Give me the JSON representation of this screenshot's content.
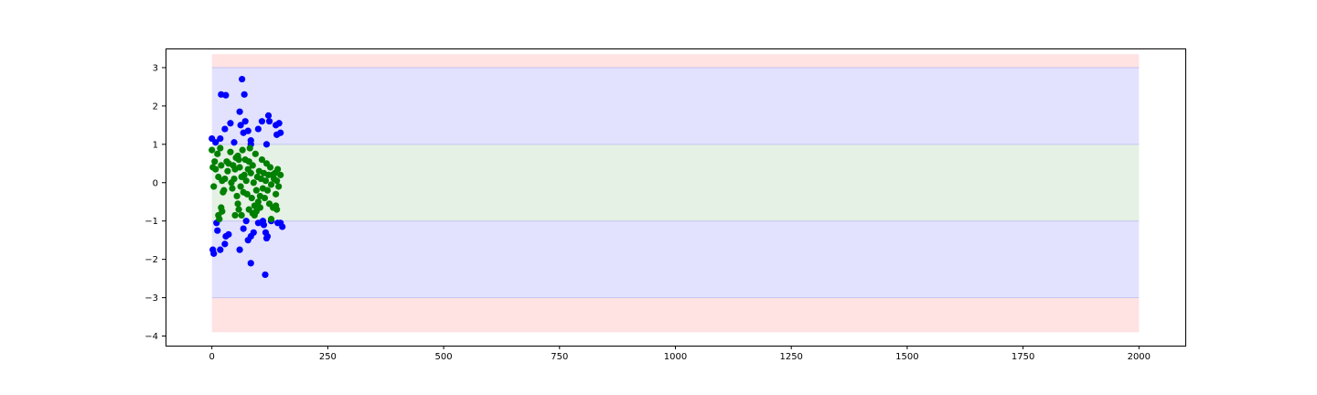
{
  "chart_data": {
    "type": "scatter",
    "title": "",
    "xlabel": "",
    "ylabel": "",
    "xlim": [
      -100,
      2100
    ],
    "ylim": [
      -4.25,
      3.5
    ],
    "x_ticks": [
      0,
      250,
      500,
      750,
      1000,
      1250,
      1500,
      1750,
      2000
    ],
    "y_ticks": [
      3,
      2,
      1,
      0,
      -1,
      -2,
      -3,
      -4
    ],
    "grid": false,
    "bands": [
      {
        "name": "outer-top",
        "x": [
          0,
          2000
        ],
        "y": [
          3,
          3.35
        ],
        "color": "#ffe2e2"
      },
      {
        "name": "middle-top",
        "x": [
          0,
          2000
        ],
        "y": [
          1,
          3
        ],
        "color": "#e2e2ff"
      },
      {
        "name": "inner",
        "x": [
          0,
          2000
        ],
        "y": [
          -1,
          1
        ],
        "color": "#e4f1e4"
      },
      {
        "name": "middle-bottom",
        "x": [
          0,
          2000
        ],
        "y": [
          -3,
          -1
        ],
        "color": "#e2e2ff"
      },
      {
        "name": "outer-bottom",
        "x": [
          0,
          2000
        ],
        "y": [
          -3.9,
          -3
        ],
        "color": "#ffe2e2"
      }
    ],
    "series": [
      {
        "color": "#0000ff",
        "points": [
          [
            0,
            1.15
          ],
          [
            8,
            1.05
          ],
          [
            18,
            1.15
          ],
          [
            28,
            1.4
          ],
          [
            40,
            1.55
          ],
          [
            48,
            1.05
          ],
          [
            60,
            1.85
          ],
          [
            62,
            1.5
          ],
          [
            68,
            1.3
          ],
          [
            72,
            1.6
          ],
          [
            78,
            1.35
          ],
          [
            84,
            1.1
          ],
          [
            84,
            1.0
          ],
          [
            100,
            1.4
          ],
          [
            108,
            1.6
          ],
          [
            118,
            1.0
          ],
          [
            122,
            1.75
          ],
          [
            124,
            1.6
          ],
          [
            138,
            1.5
          ],
          [
            140,
            1.25
          ],
          [
            145,
            1.55
          ],
          [
            148,
            1.3
          ],
          [
            65,
            2.7
          ],
          [
            70,
            2.3
          ],
          [
            20,
            2.3
          ],
          [
            30,
            2.28
          ],
          [
            2,
            -1.75
          ],
          [
            4,
            -1.85
          ],
          [
            10,
            -1.05
          ],
          [
            12,
            -1.25
          ],
          [
            18,
            -1.75
          ],
          [
            28,
            -1.6
          ],
          [
            30,
            -1.4
          ],
          [
            36,
            -1.35
          ],
          [
            60,
            -1.75
          ],
          [
            68,
            -1.2
          ],
          [
            74,
            -1.0
          ],
          [
            78,
            -1.5
          ],
          [
            84,
            -1.4
          ],
          [
            90,
            -1.3
          ],
          [
            100,
            -1.05
          ],
          [
            110,
            -1.0
          ],
          [
            112,
            -1.1
          ],
          [
            116,
            -1.3
          ],
          [
            118,
            -1.45
          ],
          [
            120,
            -1.4
          ],
          [
            128,
            -1.0
          ],
          [
            142,
            -1.05
          ],
          [
            148,
            -1.05
          ],
          [
            152,
            -1.15
          ],
          [
            84,
            -2.1
          ],
          [
            115,
            -2.4
          ]
        ]
      },
      {
        "color": "#008000",
        "points": [
          [
            0,
            0.85
          ],
          [
            2,
            0.4
          ],
          [
            4,
            -0.1
          ],
          [
            6,
            0.55
          ],
          [
            8,
            0.35
          ],
          [
            12,
            0.75
          ],
          [
            14,
            0.15
          ],
          [
            18,
            0.9
          ],
          [
            20,
            0.45
          ],
          [
            22,
            0.05
          ],
          [
            24,
            -0.25
          ],
          [
            26,
            -0.2
          ],
          [
            28,
            0.1
          ],
          [
            32,
            0.55
          ],
          [
            34,
            0.3
          ],
          [
            36,
            0.5
          ],
          [
            40,
            0.8
          ],
          [
            42,
            0.0
          ],
          [
            44,
            -0.15
          ],
          [
            46,
            0.45
          ],
          [
            48,
            0.1
          ],
          [
            50,
            0.35
          ],
          [
            52,
            0.65
          ],
          [
            54,
            -0.35
          ],
          [
            56,
            0.7
          ],
          [
            58,
            0.6
          ],
          [
            60,
            0.4
          ],
          [
            62,
            -0.1
          ],
          [
            64,
            0.15
          ],
          [
            66,
            0.85
          ],
          [
            68,
            -0.25
          ],
          [
            70,
            0.2
          ],
          [
            72,
            0.6
          ],
          [
            74,
            0.05
          ],
          [
            76,
            -0.3
          ],
          [
            78,
            0.35
          ],
          [
            80,
            0.55
          ],
          [
            82,
            0.9
          ],
          [
            84,
            0.25
          ],
          [
            86,
            -0.4
          ],
          [
            88,
            0.45
          ],
          [
            90,
            0.0
          ],
          [
            92,
            -0.6
          ],
          [
            94,
            0.75
          ],
          [
            96,
            -0.2
          ],
          [
            98,
            0.15
          ],
          [
            100,
            -0.5
          ],
          [
            102,
            0.3
          ],
          [
            104,
            -0.35
          ],
          [
            106,
            0.1
          ],
          [
            108,
            0.6
          ],
          [
            110,
            -0.15
          ],
          [
            112,
            0.25
          ],
          [
            114,
            -0.4
          ],
          [
            116,
            0.05
          ],
          [
            118,
            0.5
          ],
          [
            120,
            -0.2
          ],
          [
            122,
            0.2
          ],
          [
            124,
            -0.55
          ],
          [
            126,
            0.4
          ],
          [
            128,
            -0.05
          ],
          [
            130,
            0.2
          ],
          [
            132,
            -0.65
          ],
          [
            134,
            0.1
          ],
          [
            136,
            0.25
          ],
          [
            138,
            -0.3
          ],
          [
            140,
            0.05
          ],
          [
            142,
            0.35
          ],
          [
            144,
            -0.1
          ],
          [
            148,
            0.2
          ],
          [
            14,
            -0.85
          ],
          [
            16,
            -0.95
          ],
          [
            20,
            -0.65
          ],
          [
            22,
            -0.75
          ],
          [
            50,
            -0.85
          ],
          [
            56,
            -0.55
          ],
          [
            58,
            -0.7
          ],
          [
            64,
            -0.85
          ],
          [
            80,
            -0.7
          ],
          [
            88,
            -0.8
          ],
          [
            92,
            -0.85
          ],
          [
            96,
            -0.75
          ],
          [
            104,
            -0.65
          ],
          [
            128,
            -0.95
          ],
          [
            138,
            -0.6
          ],
          [
            140,
            -0.7
          ]
        ]
      }
    ]
  }
}
